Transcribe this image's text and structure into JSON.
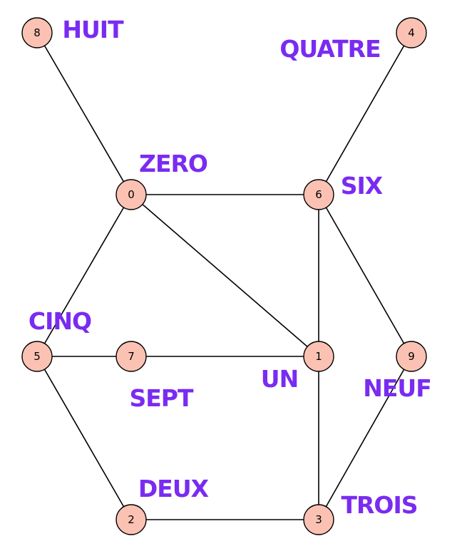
{
  "diagram": {
    "type": "graph",
    "colors": {
      "node_fill": "#fbc2b3",
      "label": "#7a2bf2"
    },
    "nodes": [
      {
        "id": "0",
        "label": "ZERO"
      },
      {
        "id": "1",
        "label": "UN"
      },
      {
        "id": "2",
        "label": "DEUX"
      },
      {
        "id": "3",
        "label": "TROIS"
      },
      {
        "id": "4",
        "label": "QUATRE"
      },
      {
        "id": "5",
        "label": "CINQ"
      },
      {
        "id": "6",
        "label": "SIX"
      },
      {
        "id": "7",
        "label": "SEPT"
      },
      {
        "id": "8",
        "label": "HUIT"
      },
      {
        "id": "9",
        "label": "NEUF"
      }
    ],
    "edges": [
      [
        "8",
        "0"
      ],
      [
        "4",
        "6"
      ],
      [
        "0",
        "6"
      ],
      [
        "0",
        "5"
      ],
      [
        "0",
        "1"
      ],
      [
        "6",
        "1"
      ],
      [
        "6",
        "9"
      ],
      [
        "5",
        "7"
      ],
      [
        "7",
        "1"
      ],
      [
        "5",
        "2"
      ],
      [
        "1",
        "3"
      ],
      [
        "9",
        "3"
      ],
      [
        "2",
        "3"
      ]
    ]
  }
}
